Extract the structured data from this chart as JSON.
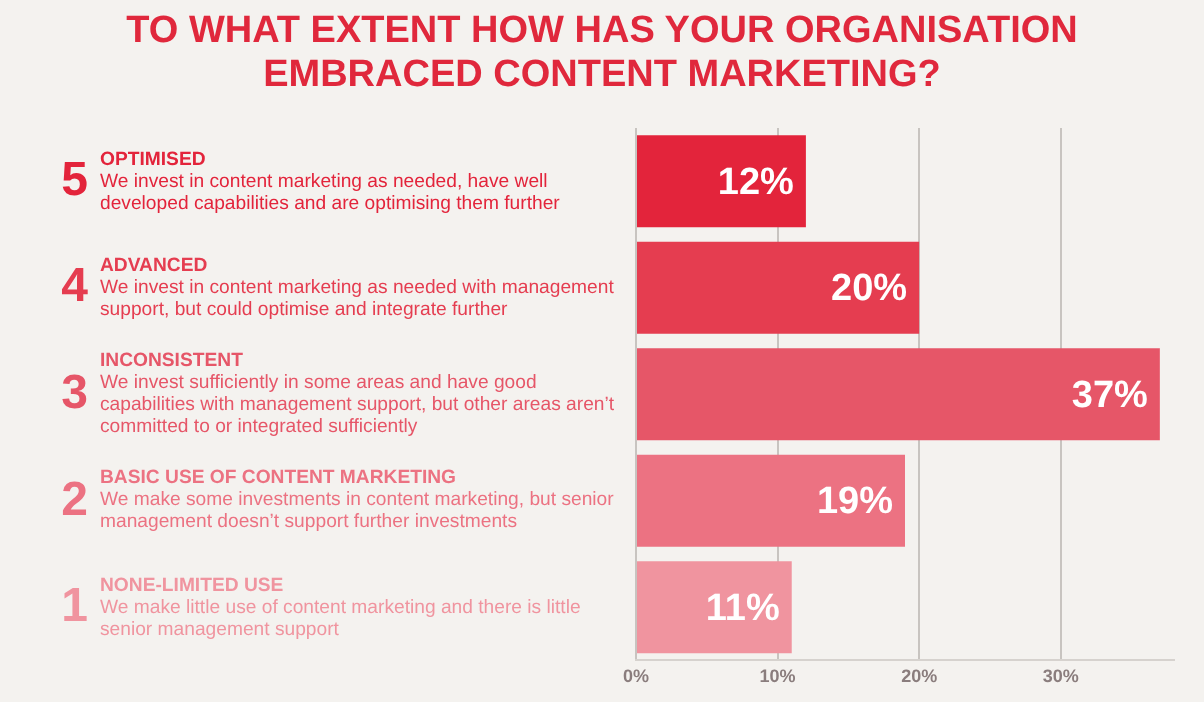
{
  "chart_data": {
    "type": "bar",
    "orientation": "horizontal",
    "title": "TO WHAT EXTENT HOW HAS YOUR ORGANISATION\nEMBRACED CONTENT MARKETING?",
    "categories": [
      "OPTIMISED\nWe invest in content marketing as needed, have well developed capabilities and are optimising them further",
      "ADVANCED\nWe invest in content marketing as needed with management support, but could optimise and integrate further",
      "INCONSISTENT\nWe invest sufficiently in some areas and have good capabilities with management support, but other areas aren’t committed to or integrated sufficiently",
      "BASIC USE OF CONTENT MARKETING\nWe make some investments in content marketing, but senior management doesn’t support further investments",
      "NONE-LIMITED USE\nWe make little use of content marketing and there is little senior management support"
    ],
    "values": [
      12,
      20,
      37,
      19,
      11
    ],
    "value_labels": [
      "12%",
      "20%",
      "37%",
      "19%",
      "11%"
    ],
    "colors": [
      "#e3243b",
      "#e53d50",
      "#e65668",
      "#ec7282",
      "#f0949f"
    ],
    "xlim": [
      0,
      38
    ],
    "xticks": [
      {
        "value": 0,
        "label": "0%"
      },
      {
        "value": 10,
        "label": "10%"
      },
      {
        "value": 20,
        "label": "20%"
      },
      {
        "value": 30,
        "label": "30%"
      }
    ],
    "grid": "x",
    "annotations": [
      "5",
      "4",
      "3",
      "2",
      "1"
    ]
  }
}
